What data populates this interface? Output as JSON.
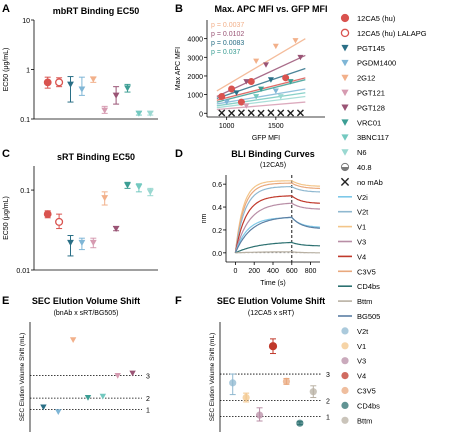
{
  "colors": {
    "12CA5 (hu)": "#d9534f",
    "12CA5 (hu) LALAPG": "#d9534f",
    "PGT145": "#2a6f86",
    "PGDM1400": "#7fb6d6",
    "2G12": "#f2b08a",
    "PGT121": "#d69bb1",
    "PGT128": "#9a5475",
    "VRC01": "#3c9e94",
    "3BNC117": "#74c9c0",
    "N6": "#9ad8d1",
    "40.8": "#7a7a7a",
    "no mAb": "#222222",
    "V2i": "#7dc8e8",
    "V2t": "#8fb8d0",
    "V1": "#f3c589",
    "V3": "#b88ea6",
    "V4": "#c0392b",
    "C3V5": "#e9a87d",
    "CD4bs": "#2c7070",
    "Bttm": "#b8b0a3",
    "BG505": "#5c7fa3"
  },
  "legend": [
    {
      "label": "12CA5 (hu)",
      "marker": "circle"
    },
    {
      "label": "12CA5 (hu) LALAPG",
      "marker": "circle-open"
    },
    {
      "label": "PGT145",
      "marker": "tri-down"
    },
    {
      "label": "PGDM1400",
      "marker": "tri-down"
    },
    {
      "label": "2G12",
      "marker": "tri-down"
    },
    {
      "label": "PGT121",
      "marker": "tri-down"
    },
    {
      "label": "PGT128",
      "marker": "tri-down"
    },
    {
      "label": "VRC01",
      "marker": "tri-down"
    },
    {
      "label": "3BNC117",
      "marker": "tri-down"
    },
    {
      "label": "N6",
      "marker": "tri-down"
    },
    {
      "label": "40.8",
      "marker": "half-circle"
    },
    {
      "label": "no mAb",
      "marker": "x"
    },
    {
      "label": "V2i",
      "marker": "line"
    },
    {
      "label": "V2t",
      "marker": "line"
    },
    {
      "label": "V1",
      "marker": "line"
    },
    {
      "label": "V3",
      "marker": "line"
    },
    {
      "label": "V4",
      "marker": "line"
    },
    {
      "label": "C3V5",
      "marker": "line"
    },
    {
      "label": "CD4bs",
      "marker": "line"
    },
    {
      "label": "Bttm",
      "marker": "line"
    },
    {
      "label": "BG505",
      "marker": "line"
    },
    {
      "label": "V2t",
      "marker": "dot"
    },
    {
      "label": "V1",
      "marker": "dot"
    },
    {
      "label": "V3",
      "marker": "dot"
    },
    {
      "label": "V4",
      "marker": "dot"
    },
    {
      "label": "C3V5",
      "marker": "dot"
    },
    {
      "label": "CD4bs",
      "marker": "dot"
    },
    {
      "label": "Bttm",
      "marker": "dot"
    }
  ],
  "chart_data": [
    {
      "panel": "A",
      "type": "scatter",
      "title": "mbRT Binding EC50",
      "ylabel": "EC50 (μg/mL)",
      "yscale": "log",
      "ylim": [
        0.1,
        10
      ],
      "yticks": [
        {
          "v": 0.1,
          "label": "0.1"
        },
        {
          "v": 1,
          "label": "1"
        },
        {
          "v": 10,
          "label": "10"
        }
      ],
      "points": [
        {
          "series": "12CA5 (hu)",
          "y": 0.55,
          "lo": 0.42,
          "hi": 0.7
        },
        {
          "series": "12CA5 (hu) LALAPG",
          "y": 0.55,
          "lo": 0.45,
          "hi": 0.68
        },
        {
          "series": "PGT145",
          "y": 0.5,
          "lo": 0.22,
          "hi": 0.72
        },
        {
          "series": "PGDM1400",
          "y": 0.4,
          "lo": 0.3,
          "hi": 0.7
        },
        {
          "series": "2G12",
          "y": 0.64,
          "lo": 0.55,
          "hi": 0.7
        },
        {
          "series": "PGT121",
          "y": 0.15,
          "lo": 0.13,
          "hi": 0.18
        },
        {
          "series": "PGT128",
          "y": 0.3,
          "lo": 0.2,
          "hi": 0.45
        },
        {
          "series": "VRC01",
          "y": 0.42,
          "lo": 0.35,
          "hi": 0.5
        },
        {
          "series": "3BNC117",
          "y": 0.13,
          "lo": 0.12,
          "hi": 0.14
        },
        {
          "series": "N6",
          "y": 0.13,
          "lo": 0.12,
          "hi": 0.14
        }
      ]
    },
    {
      "panel": "B",
      "type": "scatter",
      "title": "Max. APC MFI vs. GFP MFI",
      "xlabel": "GFP MFI",
      "ylabel": "Max APC MFI",
      "xlim": [
        800,
        2000
      ],
      "ylim": [
        -200,
        5000
      ],
      "xticks": [
        {
          "v": 1000,
          "label": "1000"
        },
        {
          "v": 1500,
          "label": "1500"
        }
      ],
      "yticks": [
        {
          "v": 0,
          "label": "0"
        },
        {
          "v": 1000,
          "label": "1000"
        },
        {
          "v": 2000,
          "label": "2000"
        },
        {
          "v": 3000,
          "label": "3000"
        },
        {
          "v": 4000,
          "label": "4000"
        }
      ],
      "annotations": [
        {
          "text": "p = 0.0037",
          "series": "2G12"
        },
        {
          "text": "p = 0.0102",
          "series": "PGT128"
        },
        {
          "text": "p = 0.0083",
          "series": "PGT145"
        },
        {
          "text": "p = 0.037",
          "series": "VRC01"
        }
      ],
      "lines": [
        {
          "series": "2G12",
          "x": [
            900,
            1800
          ],
          "y": [
            1200,
            4000
          ]
        },
        {
          "series": "PGT128",
          "x": [
            900,
            1800
          ],
          "y": [
            900,
            3100
          ]
        },
        {
          "series": "PGT145",
          "x": [
            900,
            1800
          ],
          "y": [
            800,
            2400
          ]
        },
        {
          "series": "VRC01",
          "x": [
            900,
            1800
          ],
          "y": [
            600,
            1800
          ]
        },
        {
          "series": "12CA5 (hu)",
          "x": [
            900,
            1800
          ],
          "y": [
            700,
            1900
          ]
        },
        {
          "series": "PGDM1400",
          "x": [
            900,
            1800
          ],
          "y": [
            500,
            1300
          ]
        },
        {
          "series": "3BNC117",
          "x": [
            900,
            1800
          ],
          "y": [
            400,
            1100
          ]
        },
        {
          "series": "N6",
          "x": [
            900,
            1800
          ],
          "y": [
            300,
            900
          ]
        },
        {
          "series": "PGT121",
          "x": [
            900,
            1800
          ],
          "y": [
            200,
            600
          ]
        }
      ],
      "points": [
        {
          "series": "12CA5 (hu)",
          "x": 950,
          "y": 900
        },
        {
          "series": "12CA5 (hu)",
          "x": 1050,
          "y": 1300
        },
        {
          "series": "12CA5 (hu)",
          "x": 1250,
          "y": 1700
        },
        {
          "series": "12CA5 (hu)",
          "x": 1600,
          "y": 1900
        },
        {
          "series": "12CA5 (hu)",
          "x": 1150,
          "y": 600
        },
        {
          "series": "2G12",
          "x": 1500,
          "y": 3600
        },
        {
          "series": "2G12",
          "x": 1700,
          "y": 3900
        },
        {
          "series": "2G12",
          "x": 1300,
          "y": 2800
        },
        {
          "series": "PGT128",
          "x": 1400,
          "y": 2600
        },
        {
          "series": "PGT128",
          "x": 1200,
          "y": 1700
        },
        {
          "series": "PGT128",
          "x": 1750,
          "y": 3000
        },
        {
          "series": "PGT145",
          "x": 1450,
          "y": 1800
        },
        {
          "series": "PGT145",
          "x": 1100,
          "y": 1100
        },
        {
          "series": "VRC01",
          "x": 1350,
          "y": 1300
        },
        {
          "series": "VRC01",
          "x": 1650,
          "y": 1700
        },
        {
          "series": "PGDM1400",
          "x": 1500,
          "y": 1200
        },
        {
          "series": "PGDM1400",
          "x": 1000,
          "y": 600
        },
        {
          "series": "3BNC117",
          "x": 1300,
          "y": 900
        },
        {
          "series": "N6",
          "x": 1550,
          "y": 900
        },
        {
          "series": "PGT121",
          "x": 1200,
          "y": 400
        },
        {
          "series": "no mAb",
          "x": 950,
          "y": 20
        },
        {
          "series": "no mAb",
          "x": 1050,
          "y": 10
        },
        {
          "series": "no mAb",
          "x": 1150,
          "y": 30
        },
        {
          "series": "no mAb",
          "x": 1250,
          "y": 20
        },
        {
          "series": "no mAb",
          "x": 1350,
          "y": 10
        },
        {
          "series": "no mAb",
          "x": 1450,
          "y": 30
        },
        {
          "series": "no mAb",
          "x": 1550,
          "y": 20
        },
        {
          "series": "no mAb",
          "x": 1650,
          "y": 10
        },
        {
          "series": "no mAb",
          "x": 1750,
          "y": 20
        }
      ]
    },
    {
      "panel": "C",
      "type": "scatter",
      "title": "sRT Binding EC50",
      "ylabel": "EC50 (μg/mL)",
      "yscale": "log",
      "ylim": [
        0.01,
        0.2
      ],
      "yticks": [
        {
          "v": 0.01,
          "label": "0.01"
        },
        {
          "v": 0.1,
          "label": "0.1"
        }
      ],
      "points": [
        {
          "series": "12CA5 (hu)",
          "y": 0.05,
          "lo": 0.045,
          "hi": 0.055
        },
        {
          "series": "12CA5 (hu) LALAPG",
          "y": 0.04,
          "lo": 0.033,
          "hi": 0.05
        },
        {
          "series": "PGT145",
          "y": 0.022,
          "lo": 0.015,
          "hi": 0.027
        },
        {
          "series": "PGDM1400",
          "y": 0.022,
          "lo": 0.018,
          "hi": 0.025
        },
        {
          "series": "PGT121",
          "y": 0.022,
          "lo": 0.019,
          "hi": 0.025
        },
        {
          "series": "2G12",
          "y": 0.08,
          "lo": 0.065,
          "hi": 0.095
        },
        {
          "series": "PGT128",
          "y": 0.033,
          "lo": 0.031,
          "hi": 0.035
        },
        {
          "series": "VRC01",
          "y": 0.115,
          "lo": 0.105,
          "hi": 0.125
        },
        {
          "series": "3BNC117",
          "y": 0.11,
          "lo": 0.095,
          "hi": 0.12
        },
        {
          "series": "N6",
          "y": 0.095,
          "lo": 0.085,
          "hi": 0.105
        }
      ]
    },
    {
      "panel": "D",
      "type": "line",
      "title": "BLI Binding Curves",
      "subtitle": "(12CA5)",
      "xlabel": "Time (s)",
      "ylabel": "nm",
      "xlim": [
        -100,
        900
      ],
      "ylim": [
        -0.08,
        0.68
      ],
      "xticks": [
        {
          "v": 0,
          "label": "0"
        },
        {
          "v": 200,
          "label": "200"
        },
        {
          "v": 400,
          "label": "400"
        },
        {
          "v": 600,
          "label": "600"
        },
        {
          "v": 800,
          "label": "800"
        }
      ],
      "yticks": [
        {
          "v": 0,
          "label": "0.0"
        },
        {
          "v": 0.2,
          "label": "0.2"
        },
        {
          "v": 0.4,
          "label": "0.4"
        },
        {
          "v": 0.6,
          "label": "0.6"
        }
      ],
      "assoc_end": 600,
      "series": [
        {
          "name": "V1",
          "plateau": 0.63,
          "final": 0.58,
          "rate": 0.012
        },
        {
          "name": "C3V5",
          "plateau": 0.61,
          "final": 0.56,
          "rate": 0.011
        },
        {
          "name": "V2t",
          "plateau": 0.58,
          "final": 0.53,
          "rate": 0.01
        },
        {
          "name": "V4",
          "plateau": 0.5,
          "final": 0.43,
          "rate": 0.009
        },
        {
          "name": "V3",
          "plateau": 0.44,
          "final": 0.38,
          "rate": 0.007
        },
        {
          "name": "V2i",
          "plateau": 0.31,
          "final": 0.22,
          "rate": 0.008
        },
        {
          "name": "BG505",
          "plateau": 0.32,
          "final": 0.21,
          "rate": 0.006
        },
        {
          "name": "CD4bs",
          "plateau": 0.1,
          "final": 0.06,
          "rate": 0.004
        },
        {
          "name": "Bttm",
          "plateau": 0.01,
          "final": 0.0,
          "rate": 0.004
        }
      ]
    },
    {
      "panel": "E",
      "type": "scatter",
      "title": "SEC Elution Volume Shift",
      "subtitle": "(bnAb x sRT/BG505)",
      "ylabel": "SEC Elution Volume Shift (mL)",
      "ylim": [
        -0.2,
        1.65
      ],
      "ref_lines": [
        {
          "y": 0.18,
          "label": "1"
        },
        {
          "y": 0.37,
          "label": "2"
        },
        {
          "y": 0.75,
          "label": "3"
        }
      ],
      "points": [
        {
          "series": "PGT145",
          "y": 0.22
        },
        {
          "series": "PGDM1400",
          "y": 0.14
        },
        {
          "series": "2G12",
          "y": 1.35
        },
        {
          "series": "VRC01",
          "y": 0.38
        },
        {
          "series": "3BNC117",
          "y": 0.4
        },
        {
          "series": "PGT121",
          "y": 0.75
        },
        {
          "series": "PGT128",
          "y": 0.79
        }
      ]
    },
    {
      "panel": "F",
      "type": "scatter",
      "title": "SEC Elution Volume Shift",
      "subtitle": "(12CA5 x sRT)",
      "ylabel": "SEC Elution Volume Shift (mL)",
      "ylim": [
        -0.05,
        1.45
      ],
      "ref_lines": [
        {
          "y": 0.16,
          "label": "1"
        },
        {
          "y": 0.38,
          "label": "2"
        },
        {
          "y": 0.74,
          "label": "3"
        }
      ],
      "points": [
        {
          "series": "V2t",
          "y": 0.62,
          "lo": 0.46,
          "hi": 0.74
        },
        {
          "series": "V1",
          "y": 0.42,
          "lo": 0.36,
          "hi": 0.48
        },
        {
          "series": "V3",
          "y": 0.18,
          "lo": 0.1,
          "hi": 0.28
        },
        {
          "series": "V4",
          "y": 1.12,
          "lo": 1.02,
          "hi": 1.22
        },
        {
          "series": "C3V5",
          "y": 0.64,
          "lo": 0.6,
          "hi": 0.68
        },
        {
          "series": "CD4bs",
          "y": 0.07,
          "lo": 0.05,
          "hi": 0.09
        },
        {
          "series": "Bttm",
          "y": 0.5,
          "lo": 0.42,
          "hi": 0.58
        }
      ]
    }
  ]
}
